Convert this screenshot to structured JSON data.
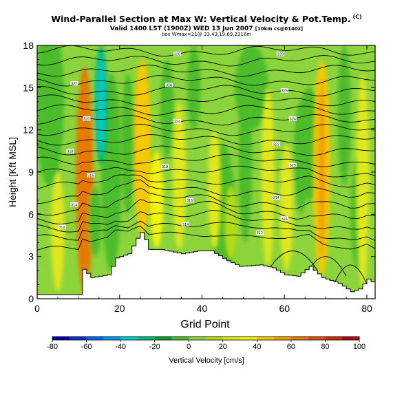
{
  "title": "Wind-Parallel Section at Max W: Vertical Velocity & Pot.Temp.",
  "title_mark": "(C)",
  "subtitle_main": "Valid 1400 LST (1900Z) WED 13 Jun 2007",
  "subtitle_small": "[10km cs@0140z]",
  "subtitle2": "box Wmax=21@ 33.43,19.69,2316m",
  "chart_data": {
    "type": "heatmap",
    "xlabel": "Grid Point",
    "ylabel": "Height [Kft MSL]",
    "x_ticks": [
      0,
      20,
      40,
      60,
      80
    ],
    "y_ticks": [
      0,
      3,
      6,
      9,
      12,
      15,
      18
    ],
    "xlim": [
      0,
      82
    ],
    "ylim": [
      0,
      18
    ],
    "colorbar": {
      "label": "Vertical Velocity [cm/s]",
      "levels": [
        -80,
        -70,
        -60,
        -50,
        -40,
        -30,
        -20,
        -10,
        0,
        10,
        20,
        30,
        40,
        50,
        60,
        70,
        80,
        90,
        100
      ],
      "tick_labels": [
        "-80",
        "-60",
        "-40",
        "-20",
        "0",
        "20",
        "40",
        "60",
        "80",
        "100"
      ],
      "colors": [
        "#0000aa",
        "#0033cc",
        "#0066ee",
        "#0099ee",
        "#00cccc",
        "#00bb77",
        "#00a030",
        "#4cbc2c",
        "#8cd43c",
        "#b4dc14",
        "#e0e81c",
        "#f4f40c",
        "#f8c800",
        "#f0a000",
        "#e87800",
        "#e05000",
        "#d02800",
        "#b00020"
      ]
    },
    "terrain": {
      "x": [
        0,
        10,
        11,
        13,
        17,
        19,
        22,
        24,
        25,
        26,
        27,
        30,
        35,
        39,
        42,
        46,
        49,
        54,
        57,
        60,
        63,
        66,
        69,
        73,
        76,
        78,
        80,
        82
      ],
      "height": [
        0.3,
        0.3,
        2.1,
        1.5,
        1.7,
        2.9,
        3.2,
        4.3,
        4.7,
        4.2,
        3.5,
        3.5,
        3.2,
        3.4,
        3.4,
        2.7,
        2.3,
        2.4,
        2.2,
        1.7,
        1.6,
        2.3,
        1.5,
        1.1,
        0.5,
        0.7,
        1.4,
        1.0
      ]
    },
    "updraft_streaks": [
      {
        "x": 11.5,
        "y0": 0.3,
        "y1": 16.5,
        "w": 60
      },
      {
        "x": 25.5,
        "y0": 4.5,
        "y1": 17.0,
        "w": 40
      },
      {
        "x": 29.0,
        "y0": 3.6,
        "y1": 10.5,
        "w": 30
      },
      {
        "x": 34.5,
        "y0": 3.5,
        "y1": 14.0,
        "w": 25
      },
      {
        "x": 43.0,
        "y0": 3.5,
        "y1": 12.0,
        "w": 20
      },
      {
        "x": 56.0,
        "y0": 2.3,
        "y1": 15.0,
        "w": 20
      },
      {
        "x": 60.5,
        "y0": 2.0,
        "y1": 11.0,
        "w": 20
      },
      {
        "x": 69.0,
        "y0": 1.6,
        "y1": 17.0,
        "w": 45
      },
      {
        "x": 79.0,
        "y0": 0.7,
        "y1": 16.0,
        "w": 20
      },
      {
        "x": 5.0,
        "y0": 0.5,
        "y1": 9.0,
        "w": 20
      },
      {
        "x": 47.0,
        "y0": 2.8,
        "y1": 8.0,
        "w": 15
      }
    ],
    "downdraft_streaks": [
      {
        "x": 15.5,
        "y0": 9.5,
        "y1": 18.0,
        "w": -30
      },
      {
        "x": 14.0,
        "y0": 3.0,
        "y1": 8.0,
        "w": -10
      },
      {
        "x": 22.0,
        "y0": 6.0,
        "y1": 16.0,
        "w": -10
      },
      {
        "x": 31.5,
        "y0": 10.0,
        "y1": 17.0,
        "w": -10
      },
      {
        "x": 38.0,
        "y0": 12.0,
        "y1": 18.0,
        "w": -10
      },
      {
        "x": 50.5,
        "y0": 4.0,
        "y1": 16.0,
        "w": -10
      },
      {
        "x": 64.0,
        "y0": 6.0,
        "y1": 14.0,
        "w": -10
      },
      {
        "x": 74.5,
        "y0": 8.0,
        "y1": 18.0,
        "w": -10
      }
    ],
    "isentropes": {
      "levels": [
        4.7,
        5.3,
        5.9,
        6.5,
        7.1,
        7.8,
        8.5,
        9.2,
        9.9,
        10.6,
        11.3,
        12.0,
        12.7,
        13.4,
        14.1,
        14.8,
        15.5,
        16.2,
        16.9,
        17.6
      ],
      "labels": [
        {
          "text": "312",
          "x": 6.0,
          "y": 5.1
        },
        {
          "text": "314",
          "x": 9.0,
          "y": 6.7
        },
        {
          "text": "316",
          "x": 13.0,
          "y": 8.8
        },
        {
          "text": "318",
          "x": 8.0,
          "y": 10.5
        },
        {
          "text": "320",
          "x": 12.0,
          "y": 12.8
        },
        {
          "text": "322",
          "x": 9.0,
          "y": 15.3
        },
        {
          "text": "324",
          "x": 34.0,
          "y": 12.6
        },
        {
          "text": "326",
          "x": 32.0,
          "y": 15.2
        },
        {
          "text": "328",
          "x": 34.0,
          "y": 17.4
        },
        {
          "text": "318",
          "x": 31.0,
          "y": 9.4
        },
        {
          "text": "316",
          "x": 37.0,
          "y": 7.0
        },
        {
          "text": "314",
          "x": 36.0,
          "y": 5.3
        },
        {
          "text": "312",
          "x": 54.0,
          "y": 4.7
        },
        {
          "text": "314",
          "x": 58.0,
          "y": 7.2
        },
        {
          "text": "316",
          "x": 60.0,
          "y": 5.7
        },
        {
          "text": "320",
          "x": 62.0,
          "y": 9.5
        },
        {
          "text": "322",
          "x": 58.0,
          "y": 11.0
        },
        {
          "text": "324",
          "x": 62.0,
          "y": 12.8
        },
        {
          "text": "326",
          "x": 60.0,
          "y": 14.8
        },
        {
          "text": "328",
          "x": 59.0,
          "y": 17.4
        }
      ]
    }
  }
}
